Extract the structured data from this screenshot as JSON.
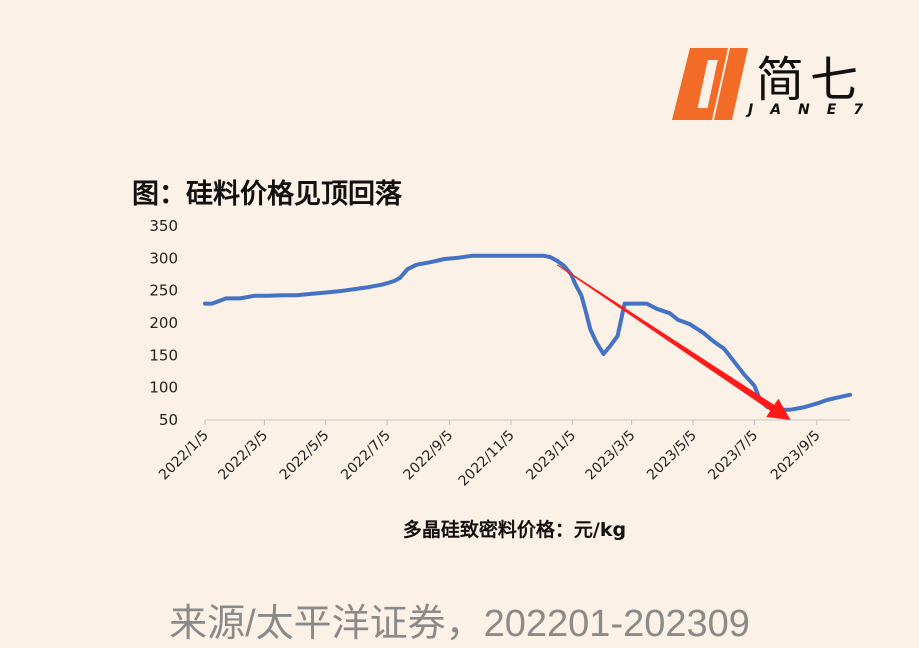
{
  "logo": {
    "text": "简七",
    "sub": "JANE7",
    "brand_color": "#f26c27"
  },
  "chart_data": {
    "type": "line",
    "title": "图：硅料价格见顶回落",
    "xlabel": "多晶硅致密料价格：元/kg",
    "ylabel": "",
    "ylim": [
      50,
      350
    ],
    "yticks": [
      50,
      100,
      150,
      200,
      250,
      300,
      350
    ],
    "xticks": [
      "2022/1/5",
      "2022/3/5",
      "2022/5/5",
      "2022/7/5",
      "2022/9/5",
      "2022/11/5",
      "2023/1/5",
      "2023/3/5",
      "2023/5/5",
      "2023/7/5",
      "2023/9/5"
    ],
    "grid": false,
    "line_color": "#4472c4",
    "arrow_color": "#ff1a1a",
    "series": [
      {
        "values": [
          [
            "2022/1/5",
            230
          ],
          [
            "2022/1/12",
            230
          ],
          [
            "2022/1/26",
            238
          ],
          [
            "2022/2/9",
            238
          ],
          [
            "2022/2/23",
            242
          ],
          [
            "2022/3/9",
            242
          ],
          [
            "2022/3/23",
            243
          ],
          [
            "2022/4/6",
            243
          ],
          [
            "2022/4/20",
            245
          ],
          [
            "2022/5/4",
            247
          ],
          [
            "2022/5/18",
            249
          ],
          [
            "2022/6/1",
            252
          ],
          [
            "2022/6/15",
            255
          ],
          [
            "2022/6/29",
            259
          ],
          [
            "2022/7/6",
            262
          ],
          [
            "2022/7/12",
            265
          ],
          [
            "2022/7/18",
            270
          ],
          [
            "2022/7/25",
            283
          ],
          [
            "2022/8/3",
            290
          ],
          [
            "2022/8/17",
            294
          ],
          [
            "2022/8/31",
            299
          ],
          [
            "2022/9/14",
            301
          ],
          [
            "2022/9/28",
            304
          ],
          [
            "2022/10/12",
            304
          ],
          [
            "2022/10/26",
            304
          ],
          [
            "2022/11/9",
            304
          ],
          [
            "2022/11/23",
            304
          ],
          [
            "2022/12/7",
            304
          ],
          [
            "2022/12/14",
            302
          ],
          [
            "2022/12/21",
            296
          ],
          [
            "2022/12/28",
            288
          ],
          [
            "2023/1/4",
            275
          ],
          [
            "2023/1/8",
            260
          ],
          [
            "2023/1/14",
            243
          ],
          [
            "2023/1/18",
            220
          ],
          [
            "2023/1/23",
            190
          ],
          [
            "2023/1/29",
            170
          ],
          [
            "2023/2/5",
            152
          ],
          [
            "2023/2/12",
            165
          ],
          [
            "2023/2/19",
            180
          ],
          [
            "2023/2/26",
            230
          ],
          [
            "2023/3/8",
            230
          ],
          [
            "2023/3/20",
            230
          ],
          [
            "2023/3/30",
            222
          ],
          [
            "2023/4/12",
            215
          ],
          [
            "2023/4/20",
            205
          ],
          [
            "2023/5/2",
            198
          ],
          [
            "2023/5/15",
            185
          ],
          [
            "2023/5/25",
            172
          ],
          [
            "2023/6/5",
            160
          ],
          [
            "2023/6/15",
            140
          ],
          [
            "2023/6/25",
            120
          ],
          [
            "2023/7/5",
            103
          ],
          [
            "2023/7/11",
            80
          ],
          [
            "2023/7/18",
            70
          ],
          [
            "2023/7/27",
            66
          ],
          [
            "2023/8/10",
            66
          ],
          [
            "2023/8/24",
            70
          ],
          [
            "2023/9/6",
            76
          ],
          [
            "2023/9/15",
            81
          ],
          [
            "2023/9/26",
            85
          ],
          [
            "2023/10/8",
            89
          ]
        ]
      }
    ],
    "annotations": [
      {
        "type": "arrow",
        "from": [
          "2022/12/21",
          290
        ],
        "to": [
          "2023/8/10",
          50
        ]
      }
    ]
  },
  "source_text": "来源/太平洋证券，202201-202309"
}
